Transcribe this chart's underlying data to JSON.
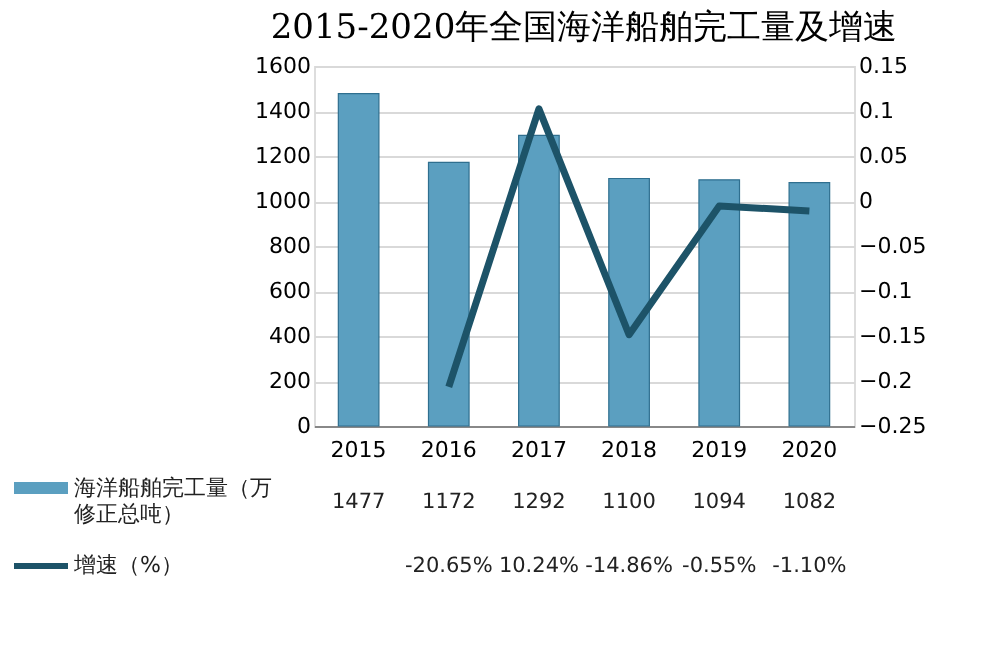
{
  "chart_data": {
    "type": "bar",
    "title": "2015-2020年全国海洋船舶完工量及增速",
    "categories": [
      "2015",
      "2016",
      "2017",
      "2018",
      "2019",
      "2020"
    ],
    "series": [
      {
        "name": "海洋船舶完工量（万修正总吨）",
        "color": "#5b9fc0",
        "values": [
          1477,
          1172,
          1292,
          1100,
          1094,
          1082
        ],
        "value_labels": [
          "1477",
          "1172",
          "1292",
          "1100",
          "1094",
          "1082"
        ]
      },
      {
        "name": "增速（%）",
        "type": "line",
        "axis": "y2",
        "color": "#1d5368",
        "values": [
          null,
          -0.2065,
          0.1024,
          -0.1486,
          -0.0055,
          -0.011
        ],
        "value_labels": [
          null,
          "-20.65%",
          "10.24%",
          "-14.86%",
          "-0.55%",
          "-1.10%"
        ]
      }
    ],
    "ylim": [
      0,
      1600
    ],
    "yticks": [
      0,
      200,
      400,
      600,
      800,
      1000,
      1200,
      1400,
      1600
    ],
    "y2lim": [
      -0.25,
      0.15
    ],
    "y2ticks": [
      -0.25,
      -0.2,
      -0.15,
      -0.1,
      -0.05,
      0,
      0.05,
      0.1,
      0.15
    ],
    "grid": "y",
    "legend": "bottom"
  }
}
